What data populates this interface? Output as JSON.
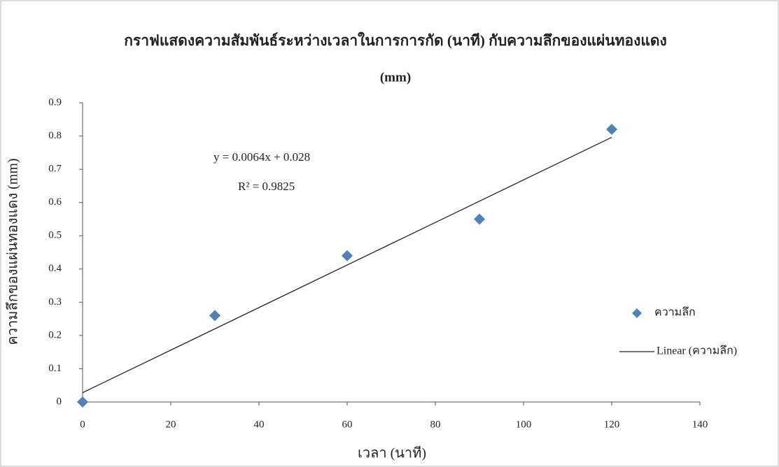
{
  "chart_data": {
    "type": "scatter",
    "title": "กราฟแสดงความสัมพันธ์ระหว่างเวลาในการการกัด (นาที) กับความลึกของแผ่นทองแดง",
    "subtitle": "(mm)",
    "x_label": "เวลา (นาที)",
    "y_label": "ความลึกของแผ่นทองแดง (mm)",
    "series": [
      {
        "name": "ความลึก",
        "color": "#4f81bd",
        "x": [
          0,
          30,
          60,
          90,
          120
        ],
        "values": [
          0,
          0.26,
          0.44,
          0.55,
          0.82
        ]
      }
    ],
    "trendline": {
      "name": "Linear (ความลึก)",
      "equation": "y = 0.0064x + 0.028",
      "r2_label": "R² = 0.9825",
      "slope": 0.0064,
      "intercept": 0.028,
      "color": "#222222"
    },
    "xlim": [
      0,
      140
    ],
    "xticks": [
      0,
      20,
      40,
      60,
      80,
      100,
      120,
      140
    ],
    "ylim": [
      0,
      0.9
    ],
    "yticks": [
      0,
      0.1,
      0.2,
      0.3,
      0.4,
      0.5,
      0.6,
      0.7,
      0.8,
      0.9
    ],
    "grid": false,
    "legend": "right"
  }
}
